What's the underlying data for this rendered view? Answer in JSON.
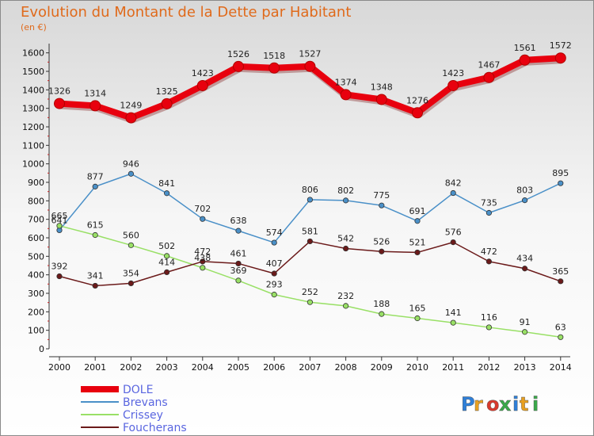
{
  "chart_data": {
    "type": "line",
    "title": "Evolution du Montant de la Dette par Habitant",
    "unit_label": "(en €)",
    "x": [
      "2000",
      "2001",
      "2002",
      "2003",
      "2004",
      "2005",
      "2006",
      "2007",
      "2008",
      "2009",
      "2010",
      "2011",
      "2012",
      "2013",
      "2014"
    ],
    "y_ticks": [
      0,
      100,
      200,
      300,
      400,
      500,
      600,
      700,
      800,
      900,
      1000,
      1100,
      1200,
      1300,
      1400,
      1500,
      1600
    ],
    "ylim": [
      0,
      1650
    ],
    "grid": false,
    "legend_position": "bottom-left",
    "series": [
      {
        "name": "DOLE",
        "color": "#e8000e",
        "values": [
          1326,
          1314,
          1249,
          1325,
          1423,
          1526,
          1518,
          1527,
          1374,
          1348,
          1276,
          1423,
          1467,
          1561,
          1572
        ]
      },
      {
        "name": "Brevans",
        "color": "#4a90c8",
        "values": [
          641,
          877,
          946,
          841,
          702,
          638,
          574,
          806,
          802,
          775,
          691,
          842,
          735,
          803,
          895
        ]
      },
      {
        "name": "Crissey",
        "color": "#99e066",
        "values": [
          665,
          615,
          560,
          502,
          438,
          369,
          293,
          252,
          232,
          188,
          165,
          141,
          116,
          91,
          63
        ]
      },
      {
        "name": "Foucherans",
        "color": "#6b1a1a",
        "values": [
          392,
          341,
          354,
          414,
          472,
          461,
          407,
          581,
          542,
          526,
          521,
          576,
          472,
          434,
          365
        ]
      }
    ]
  },
  "watermark": "Proxiti"
}
